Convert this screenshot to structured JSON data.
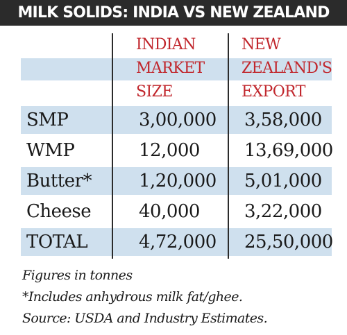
{
  "title": "MILK SOLIDS: INDIA VS NEW ZEALAND",
  "colors": {
    "title_bg": "#2b2b2b",
    "title_text": "#ffffff",
    "header_text": "#c1272d",
    "band": "#cfe0ee"
  },
  "chart_data": {
    "type": "table",
    "title": "MILK SOLIDS: INDIA VS NEW ZEALAND",
    "columns": [
      {
        "lines": [
          ""
        ]
      },
      {
        "lines": [
          "INDIAN",
          "MARKET",
          "SIZE"
        ]
      },
      {
        "lines": [
          "NEW",
          "ZEALAND'S",
          "EXPORT"
        ]
      }
    ],
    "rows": [
      {
        "label": "SMP",
        "india": "3,00,000",
        "nz": "3,58,000",
        "shaded": true
      },
      {
        "label": "WMP",
        "india": "12,000",
        "nz": "13,69,000",
        "shaded": false
      },
      {
        "label": "Butter*",
        "india": "1,20,000",
        "nz": "5,01,000",
        "shaded": true
      },
      {
        "label": "Cheese",
        "india": "40,000",
        "nz": "3,22,000",
        "shaded": false
      },
      {
        "label": "TOTAL",
        "india": "4,72,000",
        "nz": "25,50,000",
        "shaded": true
      }
    ],
    "values_india": [
      300000,
      12000,
      120000,
      40000,
      472000
    ],
    "values_nz": [
      358000,
      1369000,
      501000,
      322000,
      2550000
    ]
  },
  "notes": [
    "Figures in tonnes",
    "*Includes anhydrous milk fat/ghee.",
    "Source: USDA and Industry Estimates."
  ]
}
